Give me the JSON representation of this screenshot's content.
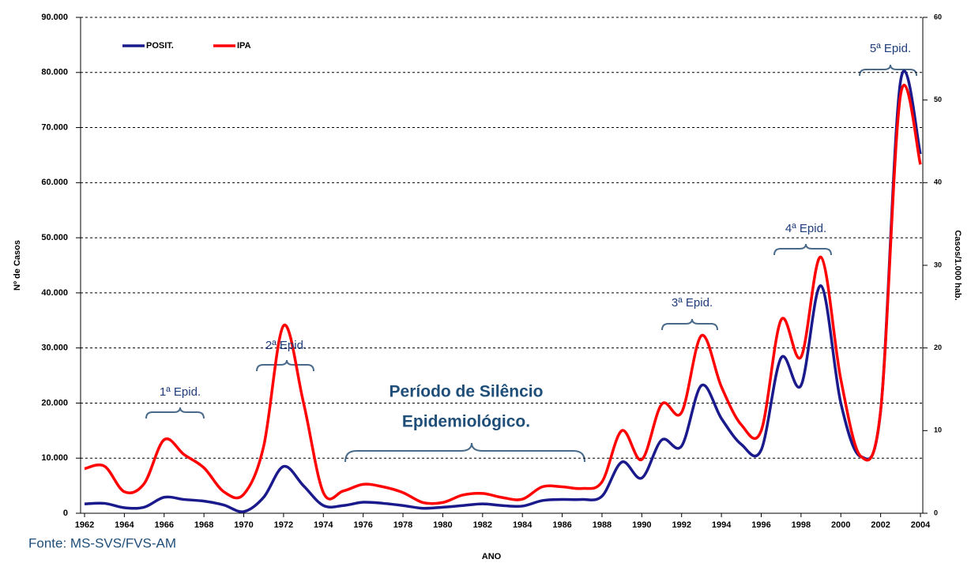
{
  "chart_data": {
    "type": "line",
    "x": [
      1962,
      1963,
      1964,
      1965,
      1966,
      1967,
      1968,
      1969,
      1970,
      1971,
      1972,
      1973,
      1974,
      1975,
      1976,
      1977,
      1978,
      1979,
      1980,
      1981,
      1982,
      1983,
      1984,
      1985,
      1986,
      1987,
      1988,
      1989,
      1990,
      1991,
      1992,
      1993,
      1994,
      1995,
      1996,
      1997,
      1998,
      1999,
      2000,
      2001,
      2002,
      2003,
      2004
    ],
    "series": [
      {
        "name": "POSIT.",
        "color": "#1a1a8c",
        "values": [
          1700,
          1800,
          1000,
          1100,
          2900,
          2500,
          2200,
          1500,
          300,
          2900,
          8500,
          5000,
          1400,
          1400,
          2000,
          1800,
          1400,
          900,
          1100,
          1400,
          1700,
          1400,
          1300,
          2300,
          2500,
          2500,
          3100,
          9300,
          6400,
          13300,
          12200,
          23200,
          17200,
          12500,
          11500,
          28200,
          23200,
          41300,
          20000,
          10300,
          18600,
          78400,
          65200
        ]
      },
      {
        "name": "IPA",
        "color": "#ff0000",
        "axis": "y2",
        "values": [
          5.4,
          5.7,
          2.6,
          3.6,
          8.9,
          7.1,
          5.5,
          2.6,
          2.3,
          8.1,
          22.7,
          13.4,
          2.5,
          2.7,
          3.5,
          3.2,
          2.5,
          1.3,
          1.3,
          2.2,
          2.4,
          1.9,
          1.7,
          3.2,
          3.2,
          3.0,
          3.8,
          10.0,
          6.5,
          13.2,
          12.2,
          21.5,
          15.3,
          10.7,
          10.0,
          23.4,
          18.9,
          31.0,
          16.2,
          6.9,
          12.4,
          50.6,
          42.2
        ]
      }
    ],
    "xlim": [
      1962,
      2004
    ],
    "xticks": [
      1962,
      1964,
      1966,
      1968,
      1970,
      1972,
      1974,
      1976,
      1978,
      1980,
      1982,
      1984,
      1986,
      1988,
      1990,
      1992,
      1994,
      1996,
      1998,
      2000,
      2002,
      2004
    ],
    "ylim": [
      0,
      90000
    ],
    "yticks": [
      0,
      {
        "value": 10000,
        "label": "10.000"
      },
      {
        "value": 20000,
        "label": "20.000"
      },
      {
        "value": 30000,
        "label": "30.000"
      },
      {
        "value": 40000,
        "label": "40.000"
      },
      {
        "value": 50000,
        "label": "50.000"
      },
      {
        "value": 60000,
        "label": "60.000"
      },
      {
        "value": 70000,
        "label": "70.000"
      },
      {
        "value": 80000,
        "label": "80.000"
      },
      {
        "value": 90000,
        "label": "90.000"
      }
    ],
    "y2lim": [
      0,
      60
    ],
    "y2ticks": [
      0,
      10,
      20,
      30,
      40,
      50,
      60
    ],
    "x_label": "ANO",
    "y_label": "Nº de Casos",
    "y2_label": "Casos/1.000 hab.",
    "grid": true,
    "legend": "top-left",
    "annotations": [
      "1ª Epid.",
      "2ª Epid.",
      "Período de Silêncio",
      "Epidemiológico.",
      "3ª Epid.",
      "4ª Epid.",
      "5ª Epid."
    ],
    "source": "Fonte: MS-SVS/FVS-AM"
  }
}
